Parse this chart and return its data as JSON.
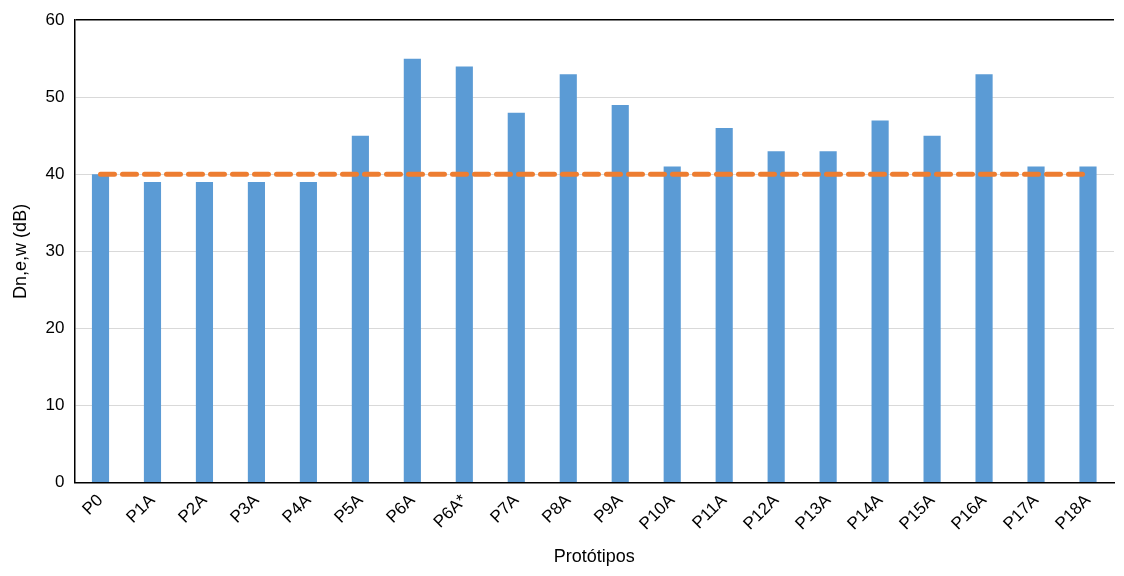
{
  "chart_data": {
    "type": "bar",
    "xlabel": "Protótipos",
    "ylabel": "Dn,e,w (dB)",
    "categories": [
      "P0",
      "P1A",
      "P2A",
      "P3A",
      "P4A",
      "P5A",
      "P6A",
      "P6A*",
      "P7A",
      "P8A",
      "P9A",
      "P10A",
      "P11A",
      "P12A",
      "P13A",
      "P14A",
      "P15A",
      "P16A",
      "P17A",
      "P18A"
    ],
    "values": [
      40,
      39,
      39,
      39,
      39,
      45,
      55,
      54,
      48,
      53,
      49,
      41,
      46,
      43,
      43,
      47,
      45,
      53,
      41,
      41
    ],
    "color": "#5b9bd5",
    "ylim": [
      0,
      60
    ],
    "yticks": [
      0,
      10,
      20,
      30,
      40,
      50,
      60
    ],
    "grid": "y",
    "ref_lines": [
      {
        "axis": "y",
        "value": 40,
        "color": "#ed7d31",
        "line_style": "dashed"
      }
    ]
  }
}
